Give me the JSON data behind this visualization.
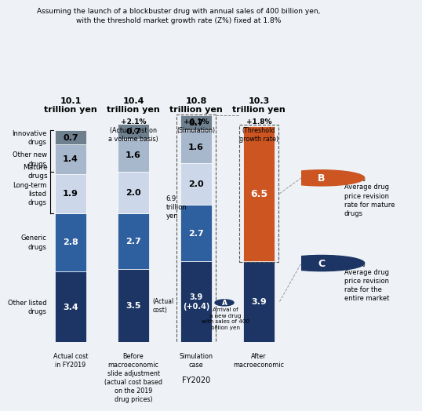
{
  "bars": {
    "bar1": {
      "label": "Actual cost\nin FY2019",
      "total_label": "10.1\ntrillion yen",
      "subtitle": "",
      "segments": [
        3.4,
        2.8,
        1.9,
        1.4,
        0.7
      ],
      "segment_labels": [
        "3.4",
        "2.8",
        "1.9",
        "1.4",
        "0.7"
      ]
    },
    "bar2": {
      "label": "Before\nmacroeconomic\nslide adjustment\n(actual cost based\non the 2019\ndrug prices)",
      "total_label": "10.4\ntrillion yen",
      "subtitle": "+2.1%\n(Actual cost on\na volume basis)",
      "segments": [
        3.5,
        2.7,
        2.0,
        1.6,
        0.7
      ],
      "segment_labels": [
        "3.5",
        "2.7",
        "2.0",
        "1.6",
        "0.7"
      ]
    },
    "bar3": {
      "label": "Simulation\ncase",
      "total_label": "10.8\ntrillion yen",
      "subtitle": "+6.1%\n(Simulation)",
      "segments": [
        3.9,
        2.7,
        2.0,
        1.6,
        0.7
      ],
      "segment_labels": [
        "3.9\n(+0.4)",
        "2.7",
        "2.0",
        "1.6",
        "0.7"
      ]
    },
    "bar4": {
      "label": "After\nmacroeconomic",
      "total_label": "10.3\ntrillion yen",
      "subtitle": "+1.8%\n(Threshold\ngrowth rate)",
      "segments": [
        3.9,
        6.5
      ],
      "segment_labels": [
        "3.9",
        "6.5"
      ]
    }
  },
  "colors": {
    "innovative": "#1c3564",
    "other_new": "#2e5f9e",
    "long_term": "#ccd8ea",
    "generic": "#a8b8cc",
    "other_listed": "#6e7f8e",
    "mature_combined": "#cc5522"
  },
  "cat_labels": [
    "Other listed\ndrugs",
    "Generic\ndrugs",
    "Long-term\nlisted\ndrugs",
    "Other new\ndrugs",
    "Innovative\ndrugs"
  ],
  "title": "Assuming the launch of a blockbuster drug with annual sales of 400 billion yen,\nwith the threshold market growth rate (Z%) fixed at 1.8%",
  "background_color": "#eef2f7"
}
